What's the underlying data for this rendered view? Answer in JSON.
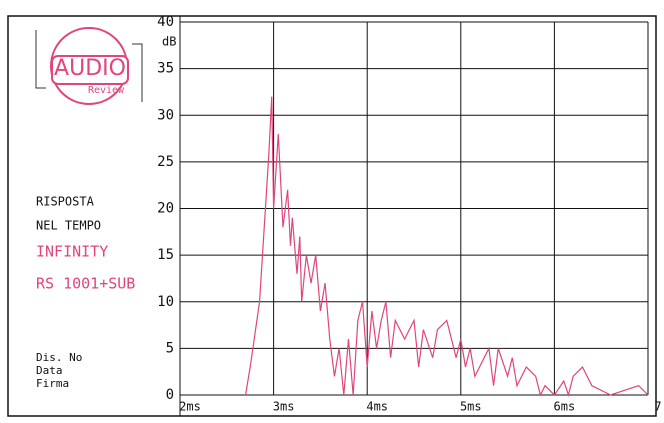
{
  "chart_data": {
    "type": "line",
    "ylabel": "dB",
    "logo": [
      "AUDIO",
      "Review"
    ],
    "annotations": [
      "RISPOSTA",
      "NEL TEMPO",
      "INFINITY",
      "RS 1001+SUB",
      "Dis. No",
      "Data",
      "Firma"
    ],
    "xlim": [
      2,
      7
    ],
    "ylim": [
      0,
      40
    ],
    "xticks": [
      {
        "value": 2,
        "label": "2ms"
      },
      {
        "value": 3,
        "label": "3ms"
      },
      {
        "value": 4,
        "label": "4ms"
      },
      {
        "value": 5,
        "label": "5ms"
      },
      {
        "value": 6,
        "label": "6ms"
      },
      7
    ],
    "yticks": [
      0,
      5,
      10,
      15,
      20,
      25,
      30,
      35,
      40
    ],
    "grid": true,
    "series": [
      {
        "color": "#e0457d",
        "x": [
          2.7,
          2.75,
          2.85,
          2.9,
          2.95,
          2.98,
          3.0,
          3.05,
          3.1,
          3.15,
          3.18,
          3.2,
          3.25,
          3.28,
          3.3,
          3.35,
          3.4,
          3.45,
          3.5,
          3.55,
          3.6,
          3.65,
          3.7,
          3.75,
          3.8,
          3.85,
          3.9,
          3.95,
          4.0,
          4.05,
          4.1,
          4.15,
          4.2,
          4.25,
          4.3,
          4.4,
          4.5,
          4.55,
          4.6,
          4.7,
          4.75,
          4.85,
          4.95,
          5.0,
          5.05,
          5.1,
          5.15,
          5.25,
          5.3,
          5.35,
          5.4,
          5.5,
          5.55,
          5.6,
          5.7,
          5.8,
          5.85,
          5.9,
          6.0,
          6.1,
          6.15,
          6.2,
          6.3,
          6.4,
          6.6,
          6.9,
          7.0
        ],
        "values": [
          0,
          3,
          10,
          18,
          26,
          32,
          20,
          28,
          18,
          22,
          16,
          19,
          13,
          17,
          10,
          15,
          12,
          15,
          9,
          12,
          6,
          2,
          5,
          0,
          6,
          0,
          8,
          10,
          3,
          9,
          5,
          8,
          10,
          4,
          8,
          6,
          8,
          3,
          7,
          4,
          7,
          8,
          4,
          6,
          3,
          5,
          2,
          4,
          5,
          1,
          5,
          2,
          4,
          1,
          3,
          2,
          0,
          1,
          0,
          1.5,
          0,
          2,
          3,
          1,
          0,
          1,
          0
        ]
      }
    ]
  }
}
